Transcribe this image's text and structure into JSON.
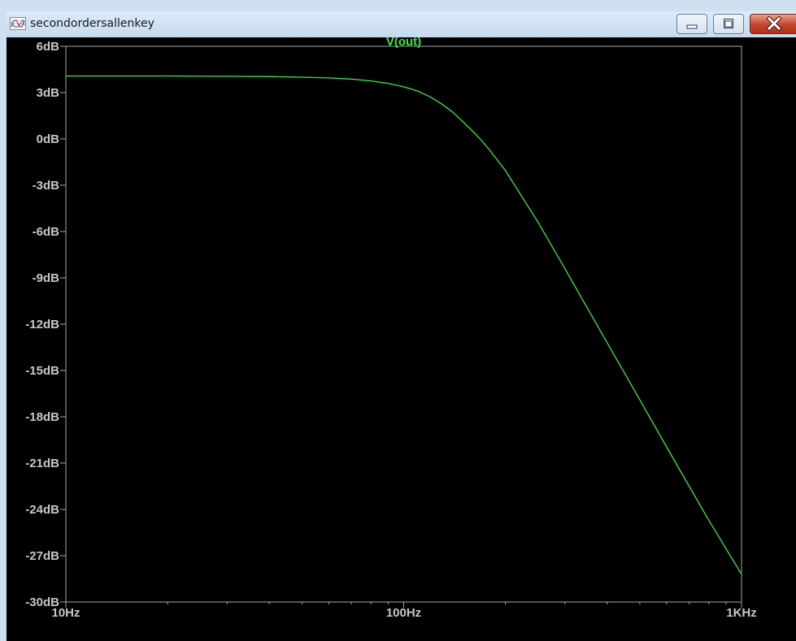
{
  "window": {
    "title": "secondordersallenkey",
    "buttons": {
      "minimize": "minimize-icon",
      "maximize": "maximize-icon",
      "close": "close-icon"
    }
  },
  "colors": {
    "plot_background": "#000000",
    "frame": "#a8a8a8",
    "tick_text": "#c8c8c8",
    "trace": "#3ee83e",
    "titlebar": "#c5daef"
  },
  "chart_data": {
    "type": "line",
    "title": "V(out)",
    "xlabel": "",
    "ylabel": "",
    "x_scale": "log",
    "xlim": [
      10,
      1000
    ],
    "ylim": [
      -30,
      6
    ],
    "grid": false,
    "x_ticks": [
      {
        "value": 10,
        "label": "10Hz"
      },
      {
        "value": 100,
        "label": "100Hz"
      },
      {
        "value": 1000,
        "label": "1KHz"
      }
    ],
    "y_ticks": [
      {
        "value": 6,
        "label": "6dB"
      },
      {
        "value": 3,
        "label": "3dB"
      },
      {
        "value": 0,
        "label": "0dB"
      },
      {
        "value": -3,
        "label": "-3dB"
      },
      {
        "value": -6,
        "label": "-6dB"
      },
      {
        "value": -9,
        "label": "-9dB"
      },
      {
        "value": -12,
        "label": "-12dB"
      },
      {
        "value": -15,
        "label": "-15dB"
      },
      {
        "value": -18,
        "label": "-18dB"
      },
      {
        "value": -21,
        "label": "-21dB"
      },
      {
        "value": -24,
        "label": "-24dB"
      },
      {
        "value": -27,
        "label": "-27dB"
      },
      {
        "value": -30,
        "label": "-30dB"
      }
    ],
    "series": [
      {
        "name": "V(out)",
        "x": [
          10,
          20,
          30,
          40,
          50,
          60,
          70,
          80,
          90,
          100,
          110,
          120,
          130,
          140,
          150,
          160,
          170,
          180,
          200,
          250,
          300,
          400,
          500,
          600,
          700,
          800,
          900,
          1000
        ],
        "y": [
          4.08,
          4.08,
          4.06,
          4.04,
          4.0,
          3.95,
          3.88,
          3.76,
          3.6,
          3.38,
          3.1,
          2.72,
          2.25,
          1.72,
          1.1,
          0.5,
          -0.1,
          -0.75,
          -2.05,
          -5.4,
          -8.4,
          -13.2,
          -16.9,
          -19.95,
          -22.5,
          -24.7,
          -26.55,
          -28.2
        ]
      }
    ]
  }
}
